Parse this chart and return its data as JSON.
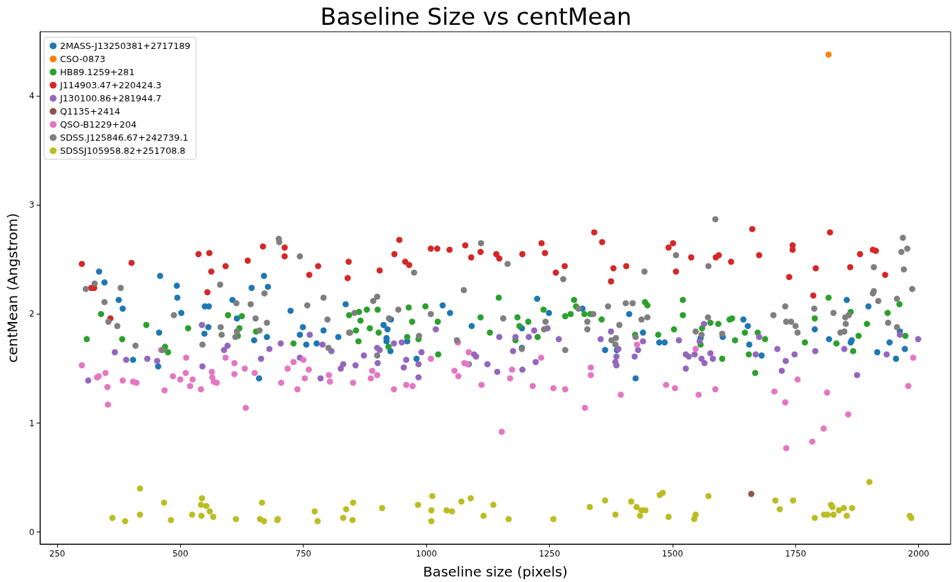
{
  "chart_data": {
    "type": "scatter",
    "title": "Baseline Size vs centMean",
    "xlabel": "Baseline size (pixels)",
    "ylabel": "centMean (Angstrom)",
    "xlim": [
      215,
      2065
    ],
    "ylim": [
      -0.11,
      4.59
    ],
    "xticks": [
      250,
      500,
      750,
      1000,
      1250,
      1500,
      1750,
      2000
    ],
    "yticks": [
      0,
      1,
      2,
      3,
      4
    ],
    "grid": false,
    "legend": "top left",
    "marker": "circle",
    "series": [
      {
        "name": "2MASS-J13250381+2717189",
        "color": "#1f77b4",
        "x": [
          335,
          346,
          375,
          383,
          455,
          404,
          457,
          459,
          493,
          494,
          502,
          550,
          558,
          557,
          549,
          615,
          606,
          650,
          645,
          670,
          678,
          676,
          724,
          749,
          743,
          756,
          777,
          791,
          821,
          836,
          660,
          913,
          921,
          928,
          919,
          919,
          961,
          927,
          980,
          1033,
          1048,
          1092,
          1086,
          1194,
          1194,
          1225,
          1249,
          1317,
          1363,
          1387,
          1412,
          1425,
          1440,
          1473,
          1484,
          1557,
          1602,
          1644,
          1653,
          1656,
          1681,
          1789,
          1818,
          1854,
          1864,
          1862,
          1898,
          1916,
          1941,
          1954,
          1962,
          1972
        ],
        "values": [
          2.39,
          2.29,
          2.13,
          2.05,
          1.52,
          1.58,
          1.83,
          2.35,
          2.26,
          2.15,
          2.01,
          2.07,
          2.07,
          1.88,
          1.82,
          1.96,
          2.13,
          1.76,
          2.24,
          2.35,
          2.25,
          1.79,
          2.03,
          1.88,
          1.81,
          1.72,
          1.73,
          1.85,
          1.79,
          2.09,
          1.41,
          1.9,
          1.86,
          1.95,
          1.78,
          1.75,
          1.75,
          1.66,
          1.59,
          2.08,
          2.01,
          1.89,
          1.54,
          1.87,
          1.69,
          2.14,
          2.01,
          2.05,
          1.67,
          1.67,
          2.0,
          1.41,
          1.83,
          1.74,
          1.74,
          1.78,
          1.79,
          1.95,
          1.89,
          1.72,
          1.62,
          1.86,
          1.77,
          2.13,
          1.76,
          1.74,
          2.07,
          1.65,
          1.74,
          1.59,
          1.84,
          1.68
        ]
      },
      {
        "name": "CSO-0873",
        "color": "#ff7f0e",
        "x": [
          1817
        ],
        "values": [
          4.38
        ]
      },
      {
        "name": "HB89.1259+281",
        "color": "#2ca02c",
        "x": [
          339,
          310,
          382,
          431,
          469,
          475,
          516,
          597,
          625,
          620,
          617,
          654,
          730,
          843,
          863,
          866,
          879,
          901,
          885,
          857,
          862,
          903,
          923,
          964,
          971,
          961,
          984,
          998,
          1023,
          1024,
          1110,
          1129,
          1147,
          1185,
          1189,
          1207,
          1181,
          1226,
          1238,
          1282,
          1293,
          1300,
          1304,
          1321,
          1333,
          1356,
          1424,
          1444,
          1449,
          1521,
          1521,
          1503,
          1471,
          1560,
          1557,
          1577,
          1593,
          1616,
          1621,
          1627,
          1601,
          1647,
          1655,
          1673,
          1688,
          1668,
          1769,
          1789,
          1817,
          1833,
          1862,
          1878,
          1867,
          1895,
          1937,
          1961,
          1973
        ],
        "values": [
          2.0,
          1.77,
          1.77,
          1.9,
          1.7,
          1.65,
          1.87,
          1.99,
          1.98,
          1.87,
          1.8,
          1.84,
          1.73,
          1.99,
          2.02,
          1.94,
          2.04,
          2.04,
          1.87,
          1.85,
          1.75,
          1.83,
          1.7,
          2.06,
          1.93,
          1.79,
          1.77,
          2.07,
          1.93,
          1.63,
          1.97,
          1.83,
          2.15,
          1.97,
          1.89,
          1.93,
          1.76,
          1.79,
          2.04,
          1.98,
          2.0,
          2.13,
          2.07,
          2.0,
          2.0,
          1.95,
          1.81,
          2.11,
          2.08,
          2.13,
          1.99,
          1.86,
          1.81,
          1.87,
          1.72,
          1.92,
          1.91,
          1.95,
          1.96,
          1.76,
          1.59,
          1.83,
          1.63,
          1.83,
          1.77,
          1.46,
          1.74,
          1.96,
          2.15,
          1.73,
          2.02,
          1.8,
          1.66,
          1.91,
          2.01,
          2.09,
          1.8
        ]
      },
      {
        "name": "J114903.47+220424.3",
        "color": "#d62728",
        "x": [
          300,
          401,
          319,
          325,
          358,
          537,
          559,
          563,
          555,
          592,
          637,
          668,
          712,
          712,
          762,
          780,
          842,
          840,
          905,
          945,
          935,
          957,
          965,
          1009,
          1022,
          1047,
          1079,
          1091,
          1110,
          1142,
          1148,
          1195,
          1234,
          1241,
          1263,
          1281,
          1341,
          1357,
          1375,
          1380,
          1406,
          1492,
          1501,
          1507,
          1538,
          1588,
          1594,
          1619,
          1662,
          1676,
          1744,
          1744,
          1737,
          1791,
          1786,
          1820,
          1861,
          1881,
          1907,
          1913,
          1932
        ],
        "values": [
          2.46,
          2.47,
          2.24,
          2.24,
          1.96,
          2.55,
          2.56,
          2.39,
          2.2,
          2.44,
          2.49,
          2.62,
          2.61,
          2.53,
          2.36,
          2.44,
          2.48,
          2.33,
          2.4,
          2.68,
          2.55,
          2.48,
          2.45,
          2.6,
          2.6,
          2.59,
          2.63,
          2.52,
          2.57,
          2.55,
          2.51,
          2.55,
          2.65,
          2.56,
          2.38,
          2.44,
          2.75,
          2.66,
          2.3,
          2.42,
          2.44,
          2.61,
          2.65,
          2.39,
          2.52,
          2.52,
          2.54,
          2.48,
          2.78,
          2.54,
          2.63,
          2.59,
          2.34,
          2.42,
          2.17,
          2.75,
          2.43,
          2.55,
          2.59,
          2.58,
          2.36
        ]
      },
      {
        "name": "J130100.86+281944.7",
        "color": "#9467bd",
        "x": [
          313,
          367,
          390,
          433,
          453,
          544,
          596,
          589,
          545,
          681,
          664,
          704,
          743,
          763,
          789,
          807,
          831,
          826,
          785,
          856,
          873,
          900,
          905,
          901,
          934,
          950,
          959,
          954,
          984,
          984,
          990,
          1019,
          1064,
          1097,
          1101,
          1124,
          1144,
          1148,
          1176,
          1181,
          1208,
          1219,
          1222,
          1195,
          1246,
          1269,
          1354,
          1375,
          1390,
          1386,
          1384,
          1386,
          1423,
          1430,
          1440,
          1513,
          1527,
          1533,
          1545,
          1527,
          1559,
          1565,
          1577,
          1582,
          1564,
          1555,
          1676,
          1669,
          1713,
          1730,
          1722,
          1748,
          1790,
          1849,
          1875,
          1935,
          1962,
          1999
        ],
        "values": [
          1.39,
          1.65,
          1.58,
          1.59,
          1.57,
          1.9,
          1.71,
          1.67,
          1.52,
          1.68,
          1.59,
          1.73,
          1.6,
          1.81,
          1.72,
          1.66,
          1.54,
          1.5,
          1.41,
          1.53,
          1.62,
          1.69,
          1.67,
          1.55,
          1.73,
          1.74,
          1.58,
          1.51,
          1.54,
          1.42,
          1.65,
          1.86,
          1.74,
          1.63,
          1.61,
          1.54,
          1.47,
          1.79,
          1.66,
          1.79,
          1.79,
          1.85,
          1.56,
          1.49,
          1.87,
          1.77,
          1.77,
          1.84,
          1.68,
          1.61,
          1.56,
          1.53,
          1.61,
          1.67,
          1.75,
          1.76,
          1.63,
          1.61,
          1.63,
          1.5,
          1.59,
          1.55,
          1.64,
          1.59,
          1.91,
          1.75,
          1.79,
          1.63,
          1.68,
          1.57,
          1.48,
          1.63,
          1.66,
          1.68,
          1.44,
          1.63,
          1.81,
          1.77
        ]
      },
      {
        "name": "Q1135+2414",
        "color": "#8c564b",
        "x": [
          1660
        ],
        "values": [
          0.35
        ]
      },
      {
        "name": "QSO-B1229+204",
        "color": "#e377c2",
        "x": [
          300,
          334,
          331,
          348,
          383,
          404,
          411,
          461,
          512,
          485,
          500,
          511,
          525,
          564,
          565,
          568,
          574,
          592,
          610,
          610,
          631,
          651,
          705,
          718,
          730,
          750,
          761,
          753,
          802,
          804,
          352,
          353,
          468,
          520,
          542,
          633,
          738,
          851,
          890,
          900,
          887,
          1009,
          1064,
          1057,
          1065,
          1077,
          1084,
          1086,
          1170,
          1174,
          1233,
          1334,
          1334,
          1428,
          934,
          959,
          972,
          1112,
          1153,
          1216,
          1258,
          1282,
          1322,
          1395,
          1487,
          1505,
          1553,
          1587,
          1707,
          1729,
          1731,
          1784,
          1807,
          1814,
          1857,
          1979,
          1547,
          1754,
          1989
        ],
        "values": [
          1.53,
          1.43,
          1.42,
          1.46,
          1.39,
          1.38,
          1.37,
          1.67,
          1.6,
          1.43,
          1.4,
          1.46,
          1.4,
          1.47,
          1.42,
          1.38,
          1.37,
          1.6,
          1.55,
          1.45,
          1.5,
          1.46,
          1.37,
          1.5,
          1.56,
          1.58,
          1.49,
          1.41,
          1.44,
          1.38,
          1.33,
          1.17,
          1.3,
          1.34,
          1.31,
          1.14,
          1.31,
          1.37,
          1.48,
          1.44,
          1.41,
          1.59,
          1.74,
          1.48,
          1.43,
          1.55,
          1.54,
          1.65,
          1.41,
          1.49,
          1.6,
          1.51,
          1.44,
          1.72,
          1.31,
          1.35,
          1.34,
          1.35,
          0.92,
          1.34,
          1.32,
          1.31,
          1.14,
          1.26,
          1.35,
          1.32,
          1.26,
          1.31,
          1.29,
          1.19,
          0.77,
          0.83,
          0.95,
          1.28,
          1.08,
          1.34,
          1.68,
          1.4,
          1.6
        ]
      },
      {
        "name": "SDSS.J125846.67+242739.1",
        "color": "#7f7f7f",
        "x": [
          308,
          326,
          379,
          346,
          354,
          372,
          409,
          487,
          545,
          581,
          582,
          584,
          614,
          643,
          653,
          671,
          676,
          661,
          615,
          612,
          700,
          701,
          743,
          758,
          791,
          799,
          801,
          843,
          464,
          975,
          1111,
          1165,
          1076,
          1278,
          1443,
          892,
          900,
          854,
          845,
          943,
          924,
          1009,
          1156,
          985,
          900,
          1062,
          1242,
          1239,
          1194,
          1282,
          1309,
          1327,
          1327,
          1339,
          1369,
          1392,
          1376,
          1385,
          1384,
          1405,
          1419,
          1437,
          1449,
          1425,
          1507,
          1573,
          1587,
          1572,
          1547,
          1559,
          1601,
          1705,
          1729,
          1731,
          1741,
          1750,
          1754,
          1788,
          1827,
          1852,
          1851,
          1858,
          1841,
          1849,
          1909,
          1907,
          1909,
          1918,
          1956,
          1938,
          1956,
          1965,
          1968,
          1977,
          1970,
          1987
        ],
        "values": [
          2.23,
          2.28,
          2.24,
          2.11,
          1.93,
          1.89,
          1.71,
          1.99,
          1.72,
          2.27,
          1.88,
          1.81,
          2.1,
          2.09,
          1.96,
          2.19,
          1.92,
          1.85,
          1.84,
          1.79,
          2.69,
          2.66,
          2.53,
          2.08,
          2.15,
          1.95,
          1.69,
          1.83,
          1.67,
          2.38,
          2.65,
          2.46,
          2.22,
          2.32,
          2.39,
          2.12,
          2.16,
          2.01,
          1.83,
          2.04,
          1.96,
          2.0,
          1.96,
          1.8,
          1.62,
          1.76,
          1.93,
          1.86,
          1.68,
          1.67,
          2.05,
          1.93,
          1.86,
          2.0,
          2.07,
          1.9,
          1.76,
          1.78,
          1.72,
          2.1,
          2.1,
          1.95,
          1.97,
          1.79,
          2.54,
          2.44,
          2.87,
          1.97,
          1.84,
          1.81,
          1.82,
          1.99,
          2.07,
          1.93,
          1.93,
          1.89,
          1.83,
          2.05,
          2.01,
          1.91,
          1.97,
          1.99,
          1.83,
          1.84,
          2.43,
          2.19,
          2.21,
          2.12,
          2.14,
          1.92,
          1.88,
          2.57,
          2.7,
          2.6,
          2.41,
          2.23
        ]
      },
      {
        "name": "SDSSJ105958.82+251708.8",
        "color": "#bcbd22",
        "x": [
          362,
          388,
          418,
          418,
          467,
          481,
          524,
          543,
          544,
          542,
          553,
          560,
          567,
          613,
          662,
          670,
          666,
          698,
          697,
          773,
          779,
          831,
          837,
          851,
          850,
          910,
          983,
          1012,
          1010,
          1010,
          1041,
          1052,
          1071,
          1090,
          1116,
          1136,
          1167,
          1258,
          1332,
          1363,
          1384,
          1416,
          1427,
          1437,
          1434,
          1445,
          1474,
          1480,
          1492,
          1547,
          1544,
          1573,
          1709,
          1718,
          1745,
          1789,
          1808,
          1815,
          1822,
          1825,
          1827,
          1838,
          1848,
          1854,
          1865,
          1900,
          1982,
          1985
        ],
        "values": [
          0.13,
          0.1,
          0.4,
          0.16,
          0.27,
          0.11,
          0.16,
          0.15,
          0.31,
          0.25,
          0.24,
          0.19,
          0.14,
          0.12,
          0.12,
          0.1,
          0.27,
          0.12,
          0.11,
          0.19,
          0.1,
          0.13,
          0.21,
          0.27,
          0.11,
          0.22,
          0.25,
          0.33,
          0.2,
          0.1,
          0.2,
          0.19,
          0.28,
          0.31,
          0.15,
          0.25,
          0.12,
          0.12,
          0.23,
          0.29,
          0.16,
          0.28,
          0.23,
          0.2,
          0.15,
          0.2,
          0.34,
          0.36,
          0.14,
          0.16,
          0.12,
          0.33,
          0.29,
          0.21,
          0.29,
          0.13,
          0.16,
          0.16,
          0.25,
          0.23,
          0.16,
          0.2,
          0.22,
          0.15,
          0.22,
          0.46,
          0.15,
          0.13
        ]
      }
    ]
  }
}
